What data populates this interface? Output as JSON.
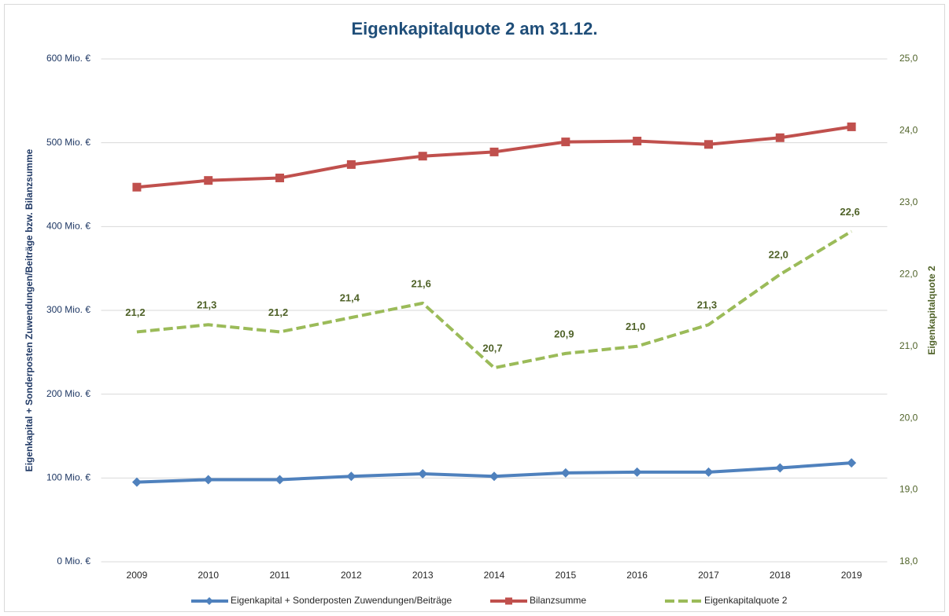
{
  "chart_data": {
    "type": "line",
    "title": "Eigenkapitalquote 2 am 31.12.",
    "y_label": "Eigenkapital + Sonderposten Zuwendungen/Beiträge bzw. Bilanzsumme",
    "y2_label": "Eigenkapitalquote 2",
    "categories": [
      "2009",
      "2010",
      "2011",
      "2012",
      "2013",
      "2014",
      "2015",
      "2016",
      "2017",
      "2018",
      "2019"
    ],
    "series": [
      {
        "name": "Eigenkapital + Sonderposten Zuwendungen/Beiträge",
        "color": "#4f81bd",
        "marker": "diamond",
        "values": [
          95,
          98,
          98,
          102,
          105,
          102,
          106,
          107,
          107,
          112,
          118
        ]
      },
      {
        "name": "Bilanzsumme",
        "color": "#c0504d",
        "marker": "square",
        "values": [
          447,
          455,
          458,
          474,
          484,
          489,
          501,
          502,
          498,
          506,
          519
        ]
      },
      {
        "name": "Eigenkapitalquote 2",
        "color": "#9bbb59",
        "axis": "y2",
        "dashed": true,
        "values": [
          21.2,
          21.3,
          21.2,
          21.4,
          21.6,
          20.7,
          20.9,
          21.0,
          21.3,
          22.0,
          22.6
        ],
        "value_labels": [
          "21,2",
          "21,3",
          "21,2",
          "21,4",
          "21,6",
          "20,7",
          "20,9",
          "21,0",
          "21,3",
          "22,0",
          "22,6"
        ]
      }
    ],
    "ylim": [
      0,
      600
    ],
    "yticks": [
      {
        "value": 0,
        "label": "0 Mio. €"
      },
      {
        "value": 100,
        "label": "100 Mio. €"
      },
      {
        "value": 200,
        "label": "200 Mio. €"
      },
      {
        "value": 300,
        "label": "300 Mio. €"
      },
      {
        "value": 400,
        "label": "400 Mio. €"
      },
      {
        "value": 500,
        "label": "500 Mio. €"
      },
      {
        "value": 600,
        "label": "600 Mio. €"
      }
    ],
    "y2lim": [
      18,
      25
    ],
    "y2ticks": [
      {
        "value": 18,
        "label": "18,0"
      },
      {
        "value": 19,
        "label": "19,0"
      },
      {
        "value": 20,
        "label": "20,0"
      },
      {
        "value": 21,
        "label": "21,0"
      },
      {
        "value": 22,
        "label": "22,0"
      },
      {
        "value": 23,
        "label": "23,0"
      },
      {
        "value": 24,
        "label": "24,0"
      },
      {
        "value": 25,
        "label": "25,0"
      }
    ],
    "grid": true,
    "legend": "bottom"
  }
}
